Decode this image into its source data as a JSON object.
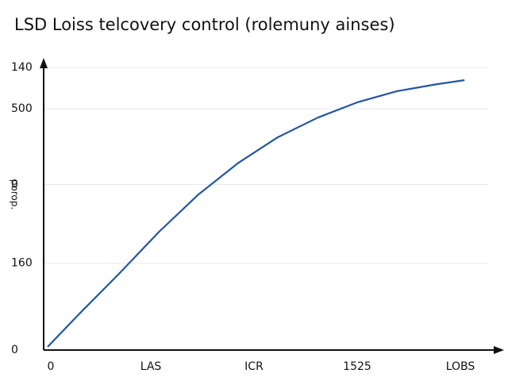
{
  "chart_data": {
    "type": "line",
    "title": "LSD Loiss telcovery control (rolemuny ainses)",
    "y_label": "porop.",
    "x": [
      0,
      0.31,
      0.69,
      1.08,
      1.46,
      1.85,
      2.23,
      2.62,
      3.0,
      3.38,
      3.77,
      4.04
    ],
    "series": [
      {
        "color": "#2456a0",
        "values": [
          1.6,
          18.1,
          37.7,
          58.6,
          77,
          92.8,
          105.4,
          115.2,
          122.7,
          128.2,
          131.7,
          133.7
        ]
      }
    ],
    "xlim": [
      0,
      4.4
    ],
    "xticks": [
      0,
      {
        "value": 1,
        "label": "LAS"
      },
      {
        "value": 2,
        "label": "ICR"
      },
      {
        "value": 3,
        "label": "1525"
      },
      {
        "value": 4,
        "label": "LOBS"
      }
    ],
    "ylim": [
      0,
      140
    ],
    "yticks": [
      0,
      {
        "value": 43,
        "label": "160"
      },
      {
        "value": 82,
        "label": "0"
      },
      {
        "value": 119.5,
        "label": "500"
      },
      140
    ],
    "grid": true
  }
}
